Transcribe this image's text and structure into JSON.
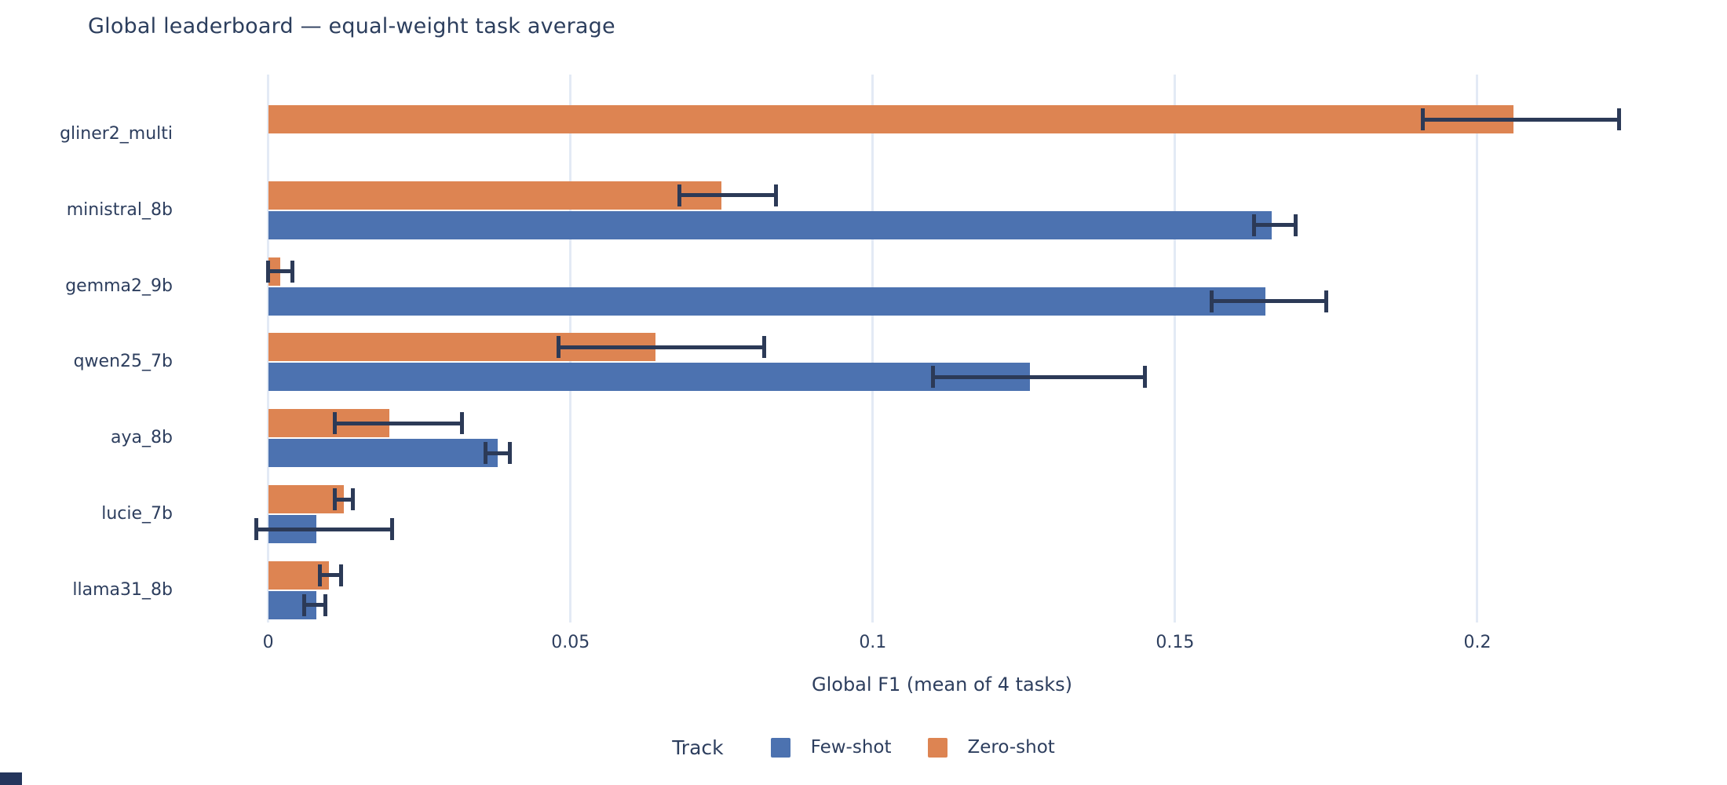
{
  "title": "Global leaderboard — equal-weight task average",
  "colors": {
    "few_shot": "#4c72b0",
    "zero_shot": "#dd8452",
    "error_bar": "#2c3a57",
    "grid": "#e3eaf5",
    "text": "#2d3e5e",
    "background": "#ffffff"
  },
  "legend": {
    "title": "Track",
    "items": [
      {
        "label": "Few-shot",
        "color": "#4c72b0"
      },
      {
        "label": "Zero-shot",
        "color": "#dd8452"
      }
    ]
  },
  "chart_data": {
    "type": "bar",
    "orientation": "horizontal",
    "title": "Global leaderboard — equal-weight task average",
    "xlabel": "Global F1 (mean of 4 tasks)",
    "ylabel": "",
    "categories": [
      "gliner2_multi",
      "ministral_8b",
      "gemma2_9b",
      "qwen25_7b",
      "aya_8b",
      "lucie_7b",
      "llama31_8b"
    ],
    "bar_order_top_to_bottom": [
      "Zero-shot",
      "Few-shot"
    ],
    "series": [
      {
        "name": "Few-shot",
        "color": "#4c72b0",
        "values": [
          null,
          0.166,
          0.165,
          0.126,
          0.038,
          0.008,
          0.008
        ],
        "ci": [
          null,
          [
            0.163,
            0.17
          ],
          [
            0.156,
            0.175
          ],
          [
            0.11,
            0.145
          ],
          [
            0.036,
            0.04
          ],
          [
            -0.002,
            0.0205
          ],
          [
            0.006,
            0.0095
          ]
        ]
      },
      {
        "name": "Zero-shot",
        "color": "#dd8452",
        "values": [
          0.206,
          0.075,
          0.002,
          0.064,
          0.02,
          0.0125,
          0.01
        ],
        "ci": [
          [
            0.191,
            0.2235
          ],
          [
            0.068,
            0.084
          ],
          [
            0.0,
            0.004
          ],
          [
            0.048,
            0.082
          ],
          [
            0.011,
            0.032
          ],
          [
            0.011,
            0.014
          ],
          [
            0.0085,
            0.012
          ]
        ]
      }
    ],
    "xticks": {
      "values": [
        0,
        0.05,
        0.1,
        0.15,
        0.2
      ],
      "labels": [
        "0",
        "0.05",
        "0.1",
        "0.15",
        "0.2"
      ]
    },
    "xlim": [
      -0.0119,
      0.2348
    ],
    "grid": true,
    "error_bars": true,
    "legend_position": "bottom-center"
  }
}
